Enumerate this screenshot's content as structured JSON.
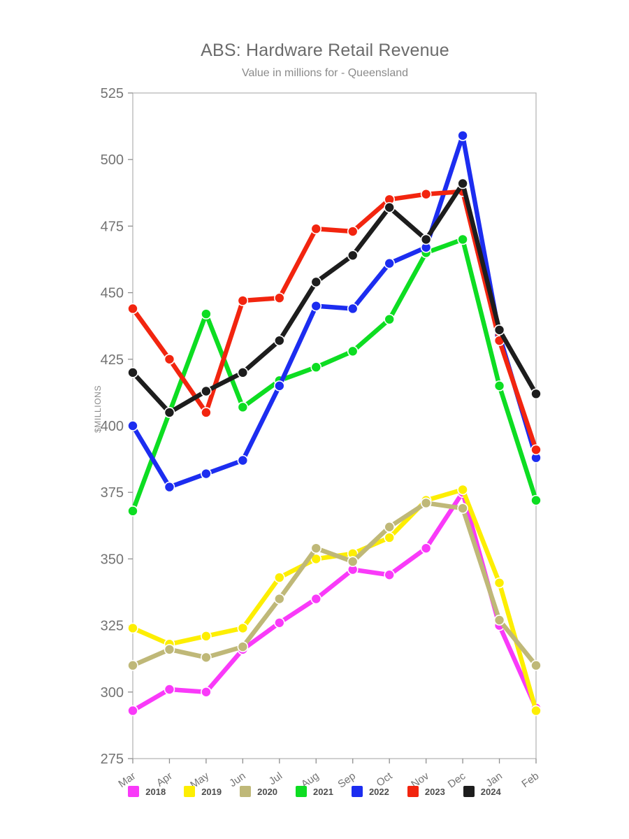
{
  "title": "ABS: Hardware Retail Revenue",
  "subtitle": "Value in millions for - Queensland",
  "y_axis_label": "$MILLIONS",
  "style_colors": {
    "axis_border": "#b6b6b6",
    "tick_mark": "#8f8f8f",
    "tick_label": "#737373",
    "title_text": "#6b6b6b",
    "subtitle_text": "#8a8a8a",
    "legend_label": "#4d4d4d",
    "point_ring": "#ffffff"
  },
  "chart_data": {
    "type": "line",
    "categories": [
      "Mar",
      "Apr",
      "May",
      "Jun",
      "Jul",
      "Aug",
      "Sep",
      "Oct",
      "Nov",
      "Dec",
      "Jan",
      "Feb"
    ],
    "ylim": [
      275,
      525
    ],
    "ytick_step": 25,
    "grid": false,
    "legend_position": "bottom",
    "xlabel": "",
    "ylabel": "$MILLIONS",
    "series": [
      {
        "name": "2018",
        "color": "#f93af9",
        "values": [
          293,
          301,
          300,
          316,
          326,
          335,
          346,
          344,
          354,
          375,
          325,
          294
        ]
      },
      {
        "name": "2019",
        "color": "#fdee02",
        "values": [
          324,
          318,
          321,
          324,
          343,
          350,
          352,
          358,
          372,
          376,
          341,
          293
        ]
      },
      {
        "name": "2020",
        "color": "#bfb878",
        "values": [
          310,
          316,
          313,
          317,
          335,
          354,
          349,
          362,
          371,
          369,
          327,
          310
        ]
      },
      {
        "name": "2021",
        "color": "#0ddd22",
        "values": [
          368,
          405,
          442,
          407,
          417,
          422,
          428,
          440,
          465,
          470,
          415,
          372
        ]
      },
      {
        "name": "2022",
        "color": "#1c2df0",
        "values": [
          400,
          377,
          382,
          387,
          415,
          445,
          444,
          461,
          467,
          509,
          434,
          388
        ]
      },
      {
        "name": "2023",
        "color": "#f2250f",
        "values": [
          444,
          425,
          405,
          447,
          448,
          474,
          473,
          485,
          487,
          488,
          432,
          391
        ]
      },
      {
        "name": "2024",
        "color": "#1d1d1d",
        "values": [
          420,
          405,
          413,
          420,
          432,
          454,
          464,
          482,
          470,
          491,
          436,
          412
        ]
      }
    ]
  }
}
